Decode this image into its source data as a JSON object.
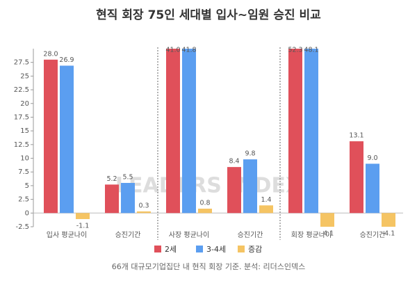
{
  "chart_data": {
    "type": "bar",
    "title": "현직 회장 75인 세대별 입사~임원 승진 비교",
    "categories": [
      "입사 평균나이",
      "승진기간",
      "사장 평균나이",
      "승진기간",
      "회장 평균나이",
      "승진기간"
    ],
    "series": [
      {
        "name": "2세",
        "color": "#e0505a",
        "values": [
          28.0,
          5.2,
          41.0,
          8.4,
          52.3,
          13.1
        ],
        "value_labels": [
          "28.0",
          "5.2",
          "41.0",
          "8.4",
          "52.3",
          "13.1"
        ]
      },
      {
        "name": "3-4세",
        "color": "#5b9ef0",
        "values": [
          26.9,
          5.5,
          41.8,
          9.8,
          48.1,
          9.0
        ],
        "value_labels": [
          "26.9",
          "5.5",
          "41.8",
          "9.8",
          "48.1",
          "9.0"
        ]
      },
      {
        "name": "증감",
        "color": "#f5c463",
        "values": [
          -1.1,
          0.3,
          0.8,
          1.4,
          -4.1,
          -4.1
        ]
      }
    ],
    "ylim": [
      -2.5,
      30
    ],
    "yticks": [
      -2.5,
      0,
      2.5,
      5,
      7.5,
      10,
      12.5,
      15,
      17.5,
      20,
      22.5,
      25,
      27.5
    ],
    "watermark": "LEADERS INDEX",
    "note": "66개 대규모기업집단 내 현직 회장 기준. 분석: 리더스인덱스",
    "legend": "bottom"
  }
}
